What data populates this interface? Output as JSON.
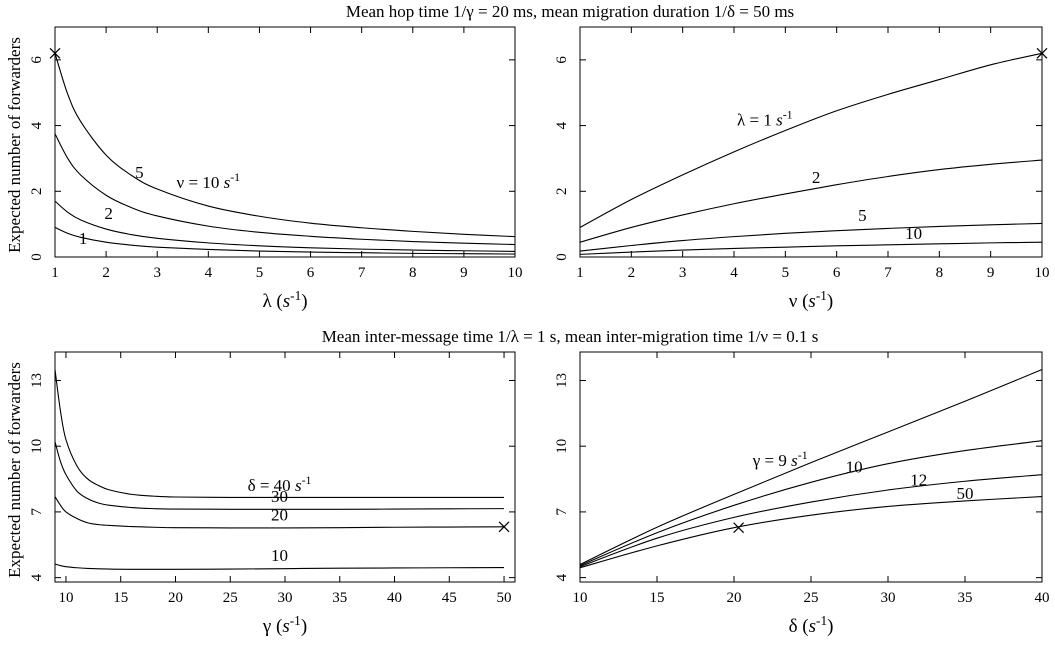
{
  "titles": {
    "top": "Mean hop time 1/γ = 20 ms, mean migration duration 1/δ = 50 ms",
    "bottom": "Mean inter-message time 1/λ = 1 s, mean inter-migration time 1/ν = 0.1 s"
  },
  "ylabels": {
    "top": "Expected number of forwarders",
    "bottom": "Expected number of forwarders"
  },
  "chart_data": [
    {
      "type": "line",
      "title": "",
      "xlabel": "λ (s-1)",
      "ylabel": "Expected number of forwarders",
      "xlim": [
        1,
        10
      ],
      "ylim": [
        0,
        7
      ],
      "xticks": [
        1,
        2,
        3,
        4,
        5,
        6,
        7,
        8,
        9,
        10
      ],
      "yticks": [
        0,
        2,
        4,
        6
      ],
      "series": [
        {
          "name": "ν = 10 s-1",
          "x": [
            1,
            1.25,
            1.5,
            2,
            2.5,
            3,
            4,
            5,
            6,
            7,
            8,
            9,
            10
          ],
          "y": [
            6.2,
            4.95,
            4.13,
            3.1,
            2.48,
            2.07,
            1.55,
            1.24,
            1.03,
            0.89,
            0.78,
            0.69,
            0.62
          ]
        },
        {
          "name": "5",
          "x": [
            1,
            1.25,
            1.5,
            2,
            2.5,
            3,
            4,
            5,
            6,
            7,
            8,
            9,
            10
          ],
          "y": [
            3.75,
            3.0,
            2.5,
            1.88,
            1.5,
            1.25,
            0.94,
            0.75,
            0.63,
            0.54,
            0.47,
            0.42,
            0.38
          ]
        },
        {
          "name": "2",
          "x": [
            1,
            1.25,
            1.5,
            2,
            2.5,
            3,
            4,
            5,
            6,
            7,
            8,
            9,
            10
          ],
          "y": [
            1.7,
            1.36,
            1.13,
            0.85,
            0.68,
            0.57,
            0.43,
            0.34,
            0.28,
            0.24,
            0.21,
            0.19,
            0.17
          ]
        },
        {
          "name": "1",
          "x": [
            1,
            1.25,
            1.5,
            2,
            2.5,
            3,
            4,
            5,
            6,
            7,
            8,
            9,
            10
          ],
          "y": [
            0.9,
            0.72,
            0.6,
            0.45,
            0.36,
            0.3,
            0.23,
            0.18,
            0.15,
            0.13,
            0.11,
            0.1,
            0.09
          ]
        }
      ],
      "annotations": [
        {
          "text": "ν = 10 s-1",
          "x": 4.0,
          "y": 2.1
        },
        {
          "text": "5",
          "x": 2.65,
          "y": 2.4
        },
        {
          "text": "2",
          "x": 2.05,
          "y": 1.15
        },
        {
          "text": "1",
          "x": 1.55,
          "y": 0.4
        }
      ],
      "markers": [
        {
          "x": 1,
          "y": 6.2
        }
      ]
    },
    {
      "type": "line",
      "title": "",
      "xlabel": "ν (s-1)",
      "ylabel": "",
      "xlim": [
        1,
        10
      ],
      "ylim": [
        0,
        7
      ],
      "xticks": [
        1,
        2,
        3,
        4,
        5,
        6,
        7,
        8,
        9,
        10
      ],
      "yticks": [
        0,
        2,
        4,
        6
      ],
      "series": [
        {
          "name": "λ = 1 s-1",
          "x": [
            1,
            2,
            3,
            4,
            5,
            6,
            7,
            8,
            9,
            10
          ],
          "y": [
            0.9,
            1.75,
            2.5,
            3.2,
            3.85,
            4.45,
            4.95,
            5.4,
            5.85,
            6.2
          ]
        },
        {
          "name": "2",
          "x": [
            1,
            2,
            3,
            4,
            5,
            6,
            7,
            8,
            9,
            10
          ],
          "y": [
            0.45,
            0.9,
            1.28,
            1.62,
            1.92,
            2.2,
            2.45,
            2.66,
            2.82,
            2.95
          ]
        },
        {
          "name": "5",
          "x": [
            1,
            2,
            3,
            4,
            5,
            6,
            7,
            8,
            9,
            10
          ],
          "y": [
            0.18,
            0.35,
            0.5,
            0.62,
            0.72,
            0.8,
            0.87,
            0.93,
            0.98,
            1.02
          ]
        },
        {
          "name": "10",
          "x": [
            1,
            2,
            3,
            4,
            5,
            6,
            7,
            8,
            9,
            10
          ],
          "y": [
            0.08,
            0.15,
            0.21,
            0.26,
            0.3,
            0.34,
            0.37,
            0.4,
            0.43,
            0.45
          ]
        }
      ],
      "annotations": [
        {
          "text": "λ = 1 s-1",
          "x": 4.6,
          "y": 4.0
        },
        {
          "text": "2",
          "x": 5.6,
          "y": 2.25
        },
        {
          "text": "5",
          "x": 6.5,
          "y": 1.1
        },
        {
          "text": "10",
          "x": 7.5,
          "y": 0.55
        }
      ],
      "markers": [
        {
          "x": 10,
          "y": 6.2
        }
      ]
    },
    {
      "type": "line",
      "title": "",
      "xlabel": "γ (s-1)",
      "ylabel": "Expected number of forwarders",
      "xlim": [
        9,
        51
      ],
      "ylim": [
        3.8,
        14.3
      ],
      "xticks": [
        10,
        15,
        20,
        25,
        30,
        35,
        40,
        45,
        50
      ],
      "yticks": [
        4,
        7,
        10,
        13
      ],
      "series": [
        {
          "name": "δ = 40 s-1",
          "x": [
            9,
            9.5,
            10,
            11,
            12,
            13,
            14,
            16,
            18,
            20,
            25,
            30,
            35,
            40,
            45,
            50
          ],
          "y": [
            13.5,
            11.6,
            10.3,
            9.1,
            8.5,
            8.2,
            8.0,
            7.8,
            7.72,
            7.68,
            7.66,
            7.66,
            7.66,
            7.66,
            7.66,
            7.66
          ]
        },
        {
          "name": "30",
          "x": [
            9,
            9.5,
            10,
            11,
            12,
            13,
            14,
            16,
            18,
            20,
            25,
            30,
            35,
            40,
            45,
            50
          ],
          "y": [
            10.2,
            9.3,
            8.7,
            7.95,
            7.6,
            7.4,
            7.3,
            7.2,
            7.15,
            7.13,
            7.12,
            7.12,
            7.12,
            7.13,
            7.14,
            7.15
          ]
        },
        {
          "name": "20",
          "x": [
            9,
            9.5,
            10,
            11,
            12,
            13,
            14,
            16,
            18,
            20,
            25,
            30,
            35,
            40,
            45,
            50
          ],
          "y": [
            7.7,
            7.3,
            7.0,
            6.7,
            6.5,
            6.42,
            6.38,
            6.33,
            6.3,
            6.28,
            6.27,
            6.27,
            6.28,
            6.3,
            6.31,
            6.32
          ]
        },
        {
          "name": "10",
          "x": [
            9,
            9.5,
            10,
            11,
            12,
            14,
            16,
            20,
            25,
            30,
            35,
            40,
            45,
            50
          ],
          "y": [
            4.62,
            4.55,
            4.5,
            4.45,
            4.42,
            4.39,
            4.38,
            4.38,
            4.39,
            4.41,
            4.43,
            4.44,
            4.45,
            4.46
          ]
        }
      ],
      "annotations": [
        {
          "text": "δ = 40 s-1",
          "x": 29.5,
          "y": 7.95
        },
        {
          "text": "30",
          "x": 29.5,
          "y": 7.45
        },
        {
          "text": "20",
          "x": 29.5,
          "y": 6.6
        },
        {
          "text": "10",
          "x": 29.5,
          "y": 4.75
        }
      ],
      "markers": [
        {
          "x": 50,
          "y": 6.32
        }
      ]
    },
    {
      "type": "line",
      "title": "",
      "xlabel": "δ (s-1)",
      "ylabel": "",
      "xlim": [
        10,
        40
      ],
      "ylim": [
        3.8,
        14.3
      ],
      "xticks": [
        10,
        15,
        20,
        25,
        30,
        35,
        40
      ],
      "yticks": [
        4,
        7,
        10,
        13
      ],
      "series": [
        {
          "name": "γ = 9 s-1",
          "x": [
            10,
            15,
            20,
            25,
            30,
            35,
            40
          ],
          "y": [
            4.6,
            6.3,
            7.8,
            9.25,
            10.65,
            12.05,
            13.5
          ]
        },
        {
          "name": "10",
          "x": [
            10,
            15,
            20,
            25,
            30,
            35,
            40
          ],
          "y": [
            4.55,
            6.05,
            7.3,
            8.35,
            9.2,
            9.8,
            10.25
          ]
        },
        {
          "name": "12",
          "x": [
            10,
            15,
            20,
            25,
            30,
            35,
            40
          ],
          "y": [
            4.5,
            5.8,
            6.75,
            7.45,
            8.0,
            8.4,
            8.7
          ]
        },
        {
          "name": "50",
          "x": [
            10,
            15,
            20,
            25,
            30,
            35,
            40
          ],
          "y": [
            4.45,
            5.45,
            6.28,
            6.85,
            7.25,
            7.5,
            7.7
          ]
        }
      ],
      "annotations": [
        {
          "text": "γ = 9 s-1",
          "x": 23.0,
          "y": 9.1
        },
        {
          "text": "10",
          "x": 27.8,
          "y": 8.8
        },
        {
          "text": "12",
          "x": 32.0,
          "y": 8.2
        },
        {
          "text": "50",
          "x": 35.0,
          "y": 7.6
        }
      ],
      "markers": [
        {
          "x": 20.3,
          "y": 6.28
        }
      ]
    }
  ]
}
